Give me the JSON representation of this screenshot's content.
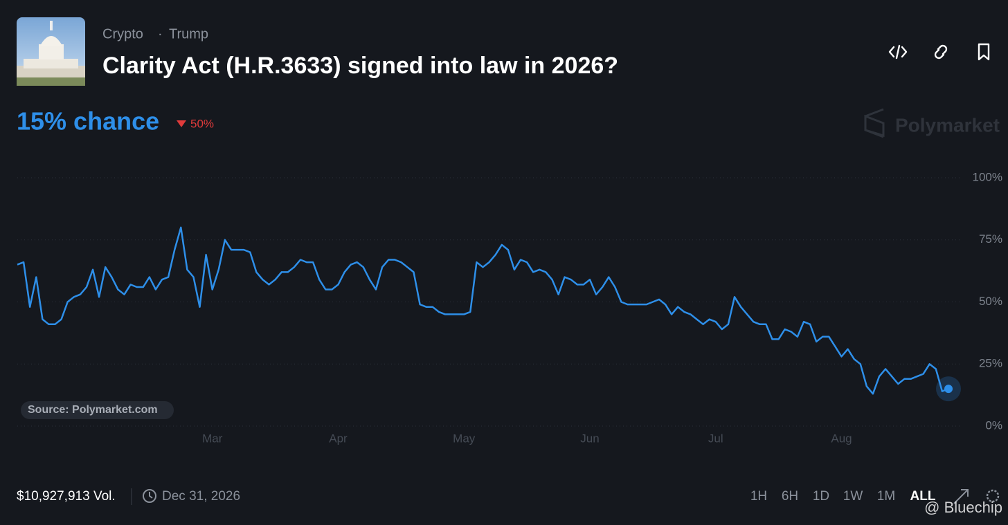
{
  "header": {
    "tags": [
      "Crypto",
      "Trump"
    ],
    "title": "Clarity Act (H.R.3633) signed into law in 2026?"
  },
  "headline": {
    "chance": "15% chance",
    "change": "50%"
  },
  "watermark": "Polymarket",
  "chart_data": {
    "type": "line",
    "color": "#2e8fe9",
    "grid": true,
    "annotation": "Source: Polymarket.com",
    "ylim": [
      0,
      100
    ],
    "yticks": [
      {
        "value": 0,
        "label": "0%"
      },
      {
        "value": 25,
        "label": "25%"
      },
      {
        "value": 50,
        "label": "50%"
      },
      {
        "value": 75,
        "label": "75%"
      },
      {
        "value": 100,
        "label": "100%"
      }
    ],
    "categories": [
      null,
      null,
      null,
      null,
      null,
      null,
      null,
      null,
      null,
      null,
      null,
      null,
      null,
      null,
      null,
      null,
      null,
      null,
      null,
      null,
      null,
      null,
      null,
      null,
      null,
      null,
      null,
      null,
      null,
      null,
      null,
      "Mar",
      null,
      null,
      null,
      null,
      null,
      null,
      null,
      null,
      null,
      null,
      null,
      null,
      null,
      null,
      null,
      null,
      null,
      null,
      null,
      "Apr",
      null,
      null,
      null,
      null,
      null,
      null,
      null,
      null,
      null,
      null,
      null,
      null,
      null,
      null,
      null,
      null,
      null,
      null,
      null,
      "May",
      null,
      null,
      null,
      null,
      null,
      null,
      null,
      null,
      null,
      null,
      null,
      null,
      null,
      null,
      null,
      null,
      null,
      null,
      null,
      "Jun",
      null,
      null,
      null,
      null,
      null,
      null,
      null,
      null,
      null,
      null,
      null,
      null,
      null,
      null,
      null,
      null,
      null,
      null,
      null,
      "Jul",
      null,
      null,
      null,
      null,
      null,
      null,
      null,
      null,
      null,
      null,
      null,
      null,
      null,
      null,
      null,
      null,
      null,
      null,
      null,
      "Aug",
      null,
      null,
      null,
      null,
      null,
      null,
      null,
      null,
      null,
      null,
      null,
      null,
      null,
      null,
      null,
      null,
      null
    ],
    "values": [
      65,
      66,
      48,
      60,
      43,
      41,
      41,
      43,
      50,
      52,
      53,
      56,
      63,
      52,
      64,
      60,
      55,
      53,
      57,
      56,
      56,
      60,
      55,
      59,
      60,
      71,
      80,
      63,
      60,
      48,
      69,
      55,
      63,
      75,
      71,
      71,
      71,
      70,
      62,
      59,
      57,
      59,
      62,
      62,
      64,
      67,
      66,
      66,
      59,
      55,
      55,
      57,
      62,
      65,
      66,
      64,
      59,
      55,
      64,
      67,
      67,
      66,
      64,
      62,
      49,
      48,
      48,
      46,
      45,
      45,
      45,
      45,
      46,
      66,
      64,
      66,
      69,
      73,
      71,
      63,
      67,
      66,
      62,
      63,
      62,
      59,
      53,
      60,
      59,
      57,
      57,
      59,
      53,
      56,
      60,
      56,
      50,
      49,
      49,
      49,
      49,
      50,
      51,
      49,
      45,
      48,
      46,
      45,
      43,
      41,
      43,
      42,
      39,
      41,
      52,
      48,
      45,
      42,
      41,
      41,
      35,
      35,
      39,
      38,
      36,
      42,
      41,
      34,
      36,
      36,
      32,
      28,
      31,
      27,
      25,
      16,
      13,
      20,
      23,
      20,
      17,
      19,
      19,
      20,
      21,
      25,
      23,
      14,
      15
    ]
  },
  "footer": {
    "volume": "$10,927,913 Vol.",
    "end_date": "Dec 31, 2026",
    "ranges": [
      "1H",
      "6H",
      "1D",
      "1W",
      "1M",
      "ALL"
    ],
    "credit": "@ Bluechip"
  }
}
